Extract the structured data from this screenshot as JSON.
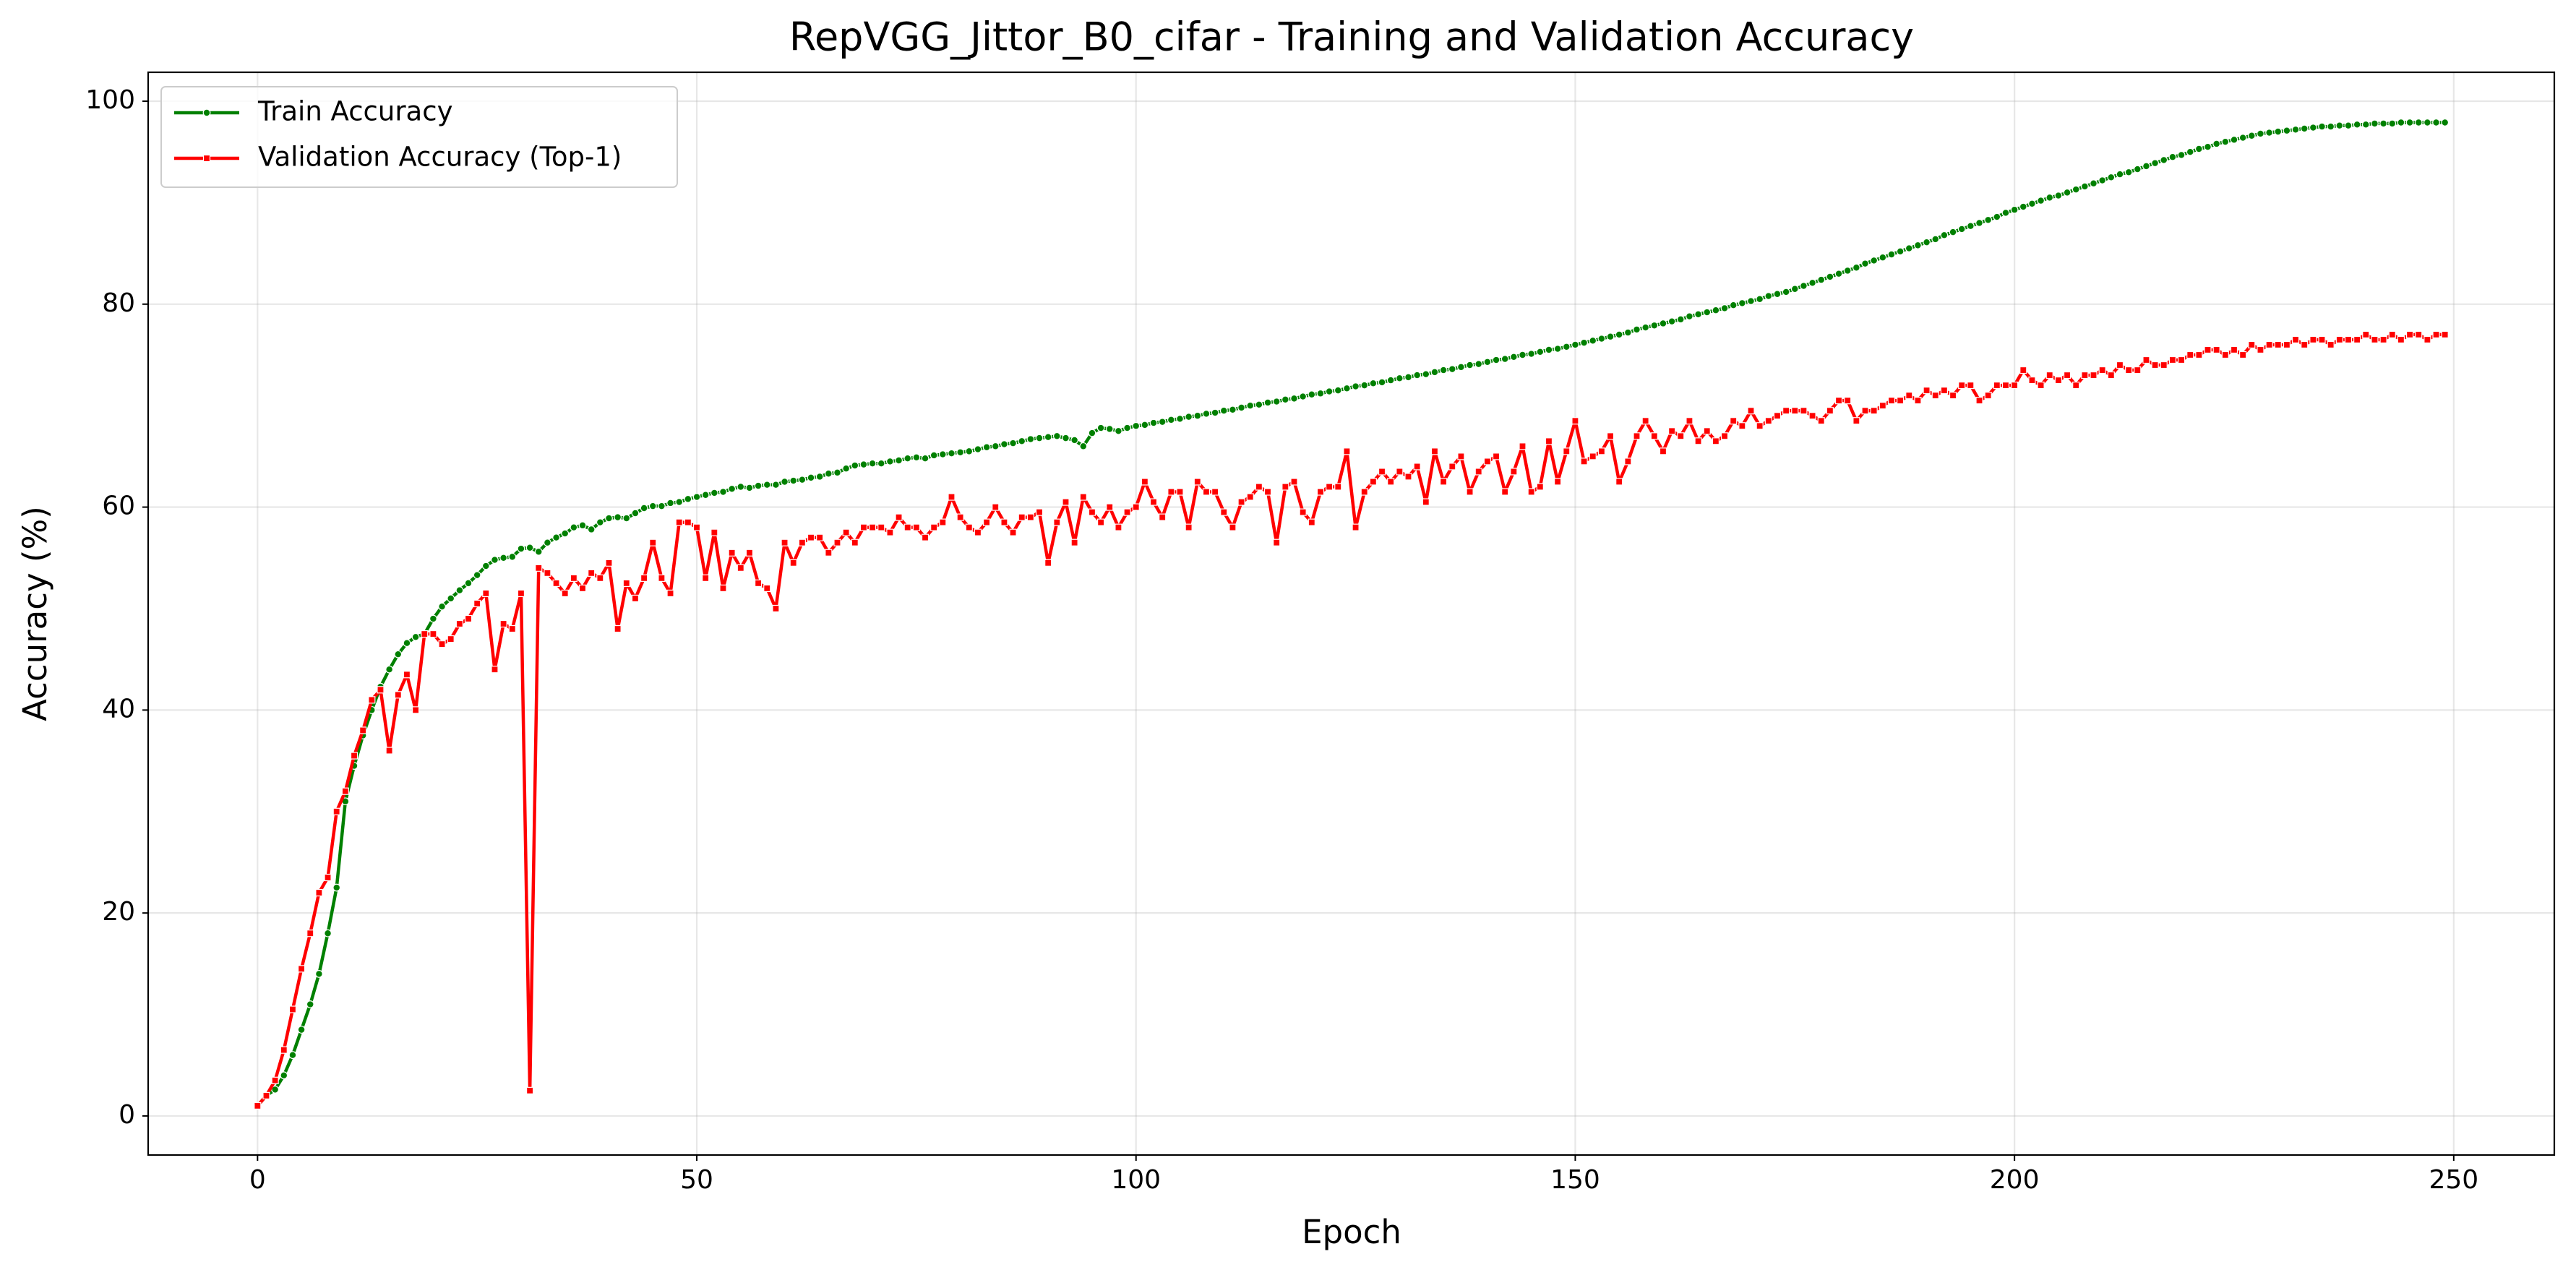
{
  "chart_data": {
    "type": "line",
    "title": "RepVGG_Jittor_B0_cifar - Training and Validation Accuracy",
    "xlabel": "Epoch",
    "ylabel": "Accuracy (%)",
    "x": [
      0,
      1,
      2,
      3,
      4,
      5,
      6,
      7,
      8,
      9,
      10,
      11,
      12,
      13,
      14,
      15,
      16,
      17,
      18,
      19,
      20,
      21,
      22,
      23,
      24,
      25,
      26,
      27,
      28,
      29,
      30,
      31,
      32,
      33,
      34,
      35,
      36,
      37,
      38,
      39,
      40,
      41,
      42,
      43,
      44,
      45,
      46,
      47,
      48,
      49,
      50,
      51,
      52,
      53,
      54,
      55,
      56,
      57,
      58,
      59,
      60,
      61,
      62,
      63,
      64,
      65,
      66,
      67,
      68,
      69,
      70,
      71,
      72,
      73,
      74,
      75,
      76,
      77,
      78,
      79,
      80,
      81,
      82,
      83,
      84,
      85,
      86,
      87,
      88,
      89,
      90,
      91,
      92,
      93,
      94,
      95,
      96,
      97,
      98,
      99,
      100,
      101,
      102,
      103,
      104,
      105,
      106,
      107,
      108,
      109,
      110,
      111,
      112,
      113,
      114,
      115,
      116,
      117,
      118,
      119,
      120,
      121,
      122,
      123,
      124,
      125,
      126,
      127,
      128,
      129,
      130,
      131,
      132,
      133,
      134,
      135,
      136,
      137,
      138,
      139,
      140,
      141,
      142,
      143,
      144,
      145,
      146,
      147,
      148,
      149,
      150,
      151,
      152,
      153,
      154,
      155,
      156,
      157,
      158,
      159,
      160,
      161,
      162,
      163,
      164,
      165,
      166,
      167,
      168,
      169,
      170,
      171,
      172,
      173,
      174,
      175,
      176,
      177,
      178,
      179,
      180,
      181,
      182,
      183,
      184,
      185,
      186,
      187,
      188,
      189,
      190,
      191,
      192,
      193,
      194,
      195,
      196,
      197,
      198,
      199,
      200,
      201,
      202,
      203,
      204,
      205,
      206,
      207,
      208,
      209,
      210,
      211,
      212,
      213,
      214,
      215,
      216,
      217,
      218,
      219,
      220,
      221,
      222,
      223,
      224,
      225,
      226,
      227,
      228,
      229,
      230,
      231,
      232,
      233,
      234,
      235,
      236,
      237,
      238,
      239,
      240,
      241,
      242,
      243,
      244,
      245,
      246,
      247,
      248,
      249
    ],
    "series": [
      {
        "name": "Train Accuracy",
        "color": "#008000",
        "marker": "circle",
        "values": [
          1.0,
          2.0,
          2.6,
          4.0,
          6.0,
          8.5,
          11.0,
          14.0,
          18.0,
          22.5,
          31.0,
          34.5,
          37.5,
          40.0,
          42.3,
          44.0,
          45.5,
          46.6,
          47.2,
          47.5,
          49.0,
          50.2,
          51.0,
          51.8,
          52.5,
          53.3,
          54.2,
          54.8,
          55.0,
          55.1,
          55.9,
          56.0,
          55.6,
          56.5,
          57.0,
          57.4,
          58.0,
          58.2,
          57.8,
          58.5,
          58.9,
          59.0,
          58.9,
          59.4,
          59.9,
          60.1,
          60.1,
          60.4,
          60.5,
          60.8,
          61.0,
          61.2,
          61.4,
          61.5,
          61.8,
          62.0,
          61.9,
          62.1,
          62.2,
          62.2,
          62.5,
          62.6,
          62.7,
          62.9,
          63.0,
          63.3,
          63.4,
          63.8,
          64.1,
          64.2,
          64.3,
          64.3,
          64.5,
          64.6,
          64.8,
          64.9,
          64.8,
          65.1,
          65.2,
          65.3,
          65.4,
          65.5,
          65.7,
          65.9,
          66.0,
          66.2,
          66.3,
          66.5,
          66.7,
          66.8,
          66.9,
          67.0,
          66.8,
          66.6,
          66.0,
          67.3,
          67.8,
          67.7,
          67.5,
          67.8,
          68.0,
          68.1,
          68.3,
          68.4,
          68.6,
          68.7,
          68.9,
          69.0,
          69.2,
          69.3,
          69.5,
          69.6,
          69.8,
          70.0,
          70.1,
          70.3,
          70.4,
          70.6,
          70.7,
          70.9,
          71.1,
          71.2,
          71.4,
          71.5,
          71.7,
          71.9,
          72.0,
          72.2,
          72.3,
          72.5,
          72.7,
          72.8,
          73.0,
          73.1,
          73.3,
          73.5,
          73.6,
          73.8,
          74.0,
          74.1,
          74.3,
          74.5,
          74.6,
          74.8,
          75.0,
          75.1,
          75.3,
          75.5,
          75.6,
          75.8,
          76.0,
          76.2,
          76.4,
          76.6,
          76.8,
          77.0,
          77.2,
          77.5,
          77.7,
          77.9,
          78.1,
          78.3,
          78.5,
          78.8,
          79.0,
          79.2,
          79.4,
          79.6,
          79.9,
          80.1,
          80.3,
          80.5,
          80.8,
          81.0,
          81.2,
          81.5,
          81.8,
          82.1,
          82.4,
          82.7,
          83.0,
          83.3,
          83.6,
          84.0,
          84.3,
          84.6,
          84.9,
          85.2,
          85.5,
          85.8,
          86.1,
          86.4,
          86.8,
          87.1,
          87.4,
          87.7,
          88.0,
          88.3,
          88.6,
          89.0,
          89.3,
          89.6,
          89.9,
          90.2,
          90.5,
          90.7,
          91.0,
          91.3,
          91.6,
          91.9,
          92.2,
          92.5,
          92.8,
          93.0,
          93.3,
          93.6,
          93.9,
          94.2,
          94.5,
          94.7,
          95.0,
          95.3,
          95.5,
          95.8,
          96.0,
          96.2,
          96.4,
          96.6,
          96.8,
          96.9,
          97.0,
          97.1,
          97.2,
          97.3,
          97.4,
          97.5,
          97.5,
          97.6,
          97.6,
          97.7,
          97.7,
          97.8,
          97.8,
          97.8,
          97.9,
          97.9,
          97.9,
          97.9,
          97.9,
          97.9
        ]
      },
      {
        "name": "Validation Accuracy (Top-1)",
        "color": "#ff0000",
        "marker": "square",
        "values": [
          1.0,
          2.0,
          3.5,
          6.5,
          10.5,
          14.5,
          18.0,
          22.0,
          23.5,
          30.0,
          32.0,
          35.5,
          38.0,
          41.0,
          42.0,
          36.0,
          41.5,
          43.5,
          40.0,
          47.5,
          47.5,
          46.5,
          47.0,
          48.5,
          49.0,
          50.5,
          51.5,
          44.0,
          48.5,
          48.0,
          51.5,
          2.5,
          54.0,
          53.5,
          52.5,
          51.5,
          53.0,
          52.0,
          53.5,
          53.0,
          54.5,
          48.0,
          52.5,
          51.0,
          53.0,
          56.5,
          53.0,
          51.5,
          58.5,
          58.5,
          58.0,
          53.0,
          57.5,
          52.0,
          55.5,
          54.0,
          55.5,
          52.5,
          52.0,
          50.0,
          56.5,
          54.5,
          56.5,
          57.0,
          57.0,
          55.5,
          56.5,
          57.5,
          56.5,
          58.0,
          58.0,
          58.0,
          57.5,
          59.0,
          58.0,
          58.0,
          57.0,
          58.0,
          58.5,
          61.0,
          59.0,
          58.0,
          57.5,
          58.5,
          60.0,
          58.5,
          57.5,
          59.0,
          59.0,
          59.5,
          54.5,
          58.5,
          60.5,
          56.5,
          61.0,
          59.5,
          58.5,
          60.0,
          58.0,
          59.5,
          60.0,
          62.5,
          60.5,
          59.0,
          61.5,
          61.5,
          58.0,
          62.5,
          61.5,
          61.5,
          59.5,
          58.0,
          60.5,
          61.0,
          62.0,
          61.5,
          56.5,
          62.0,
          62.5,
          59.5,
          58.5,
          61.5,
          62.0,
          62.0,
          65.5,
          58.0,
          61.5,
          62.5,
          63.5,
          62.5,
          63.5,
          63.0,
          64.0,
          60.5,
          65.5,
          62.5,
          64.0,
          65.0,
          61.5,
          63.5,
          64.5,
          65.0,
          61.5,
          63.5,
          66.0,
          61.5,
          62.0,
          66.5,
          62.5,
          65.5,
          68.5,
          64.5,
          65.0,
          65.5,
          67.0,
          62.5,
          64.5,
          67.0,
          68.5,
          67.0,
          65.5,
          67.5,
          67.0,
          68.5,
          66.5,
          67.5,
          66.5,
          67.0,
          68.5,
          68.0,
          69.5,
          68.0,
          68.5,
          69.0,
          69.5,
          69.5,
          69.5,
          69.0,
          68.5,
          69.5,
          70.5,
          70.5,
          68.5,
          69.5,
          69.5,
          70.0,
          70.5,
          70.5,
          71.0,
          70.5,
          71.5,
          71.0,
          71.5,
          71.0,
          72.0,
          72.0,
          70.5,
          71.0,
          72.0,
          72.0,
          72.0,
          73.5,
          72.5,
          72.0,
          73.0,
          72.5,
          73.0,
          72.0,
          73.0,
          73.0,
          73.5,
          73.0,
          74.0,
          73.5,
          73.5,
          74.5,
          74.0,
          74.0,
          74.5,
          74.5,
          75.0,
          75.0,
          75.5,
          75.5,
          75.0,
          75.5,
          75.0,
          76.0,
          75.5,
          76.0,
          76.0,
          76.0,
          76.5,
          76.0,
          76.5,
          76.5,
          76.0,
          76.5,
          76.5,
          76.5,
          77.0,
          76.5,
          76.5,
          77.0,
          76.5,
          77.0,
          77.0,
          76.5,
          77.0,
          77.0
        ]
      }
    ],
    "xlim": [
      -12.45,
      261.45
    ],
    "xticks": [
      0,
      50,
      100,
      150,
      200,
      250
    ],
    "ylim": [
      -3.85,
      102.85
    ],
    "yticks": [
      0,
      20,
      40,
      60,
      80,
      100
    ],
    "grid": true,
    "legend": "upper left"
  }
}
